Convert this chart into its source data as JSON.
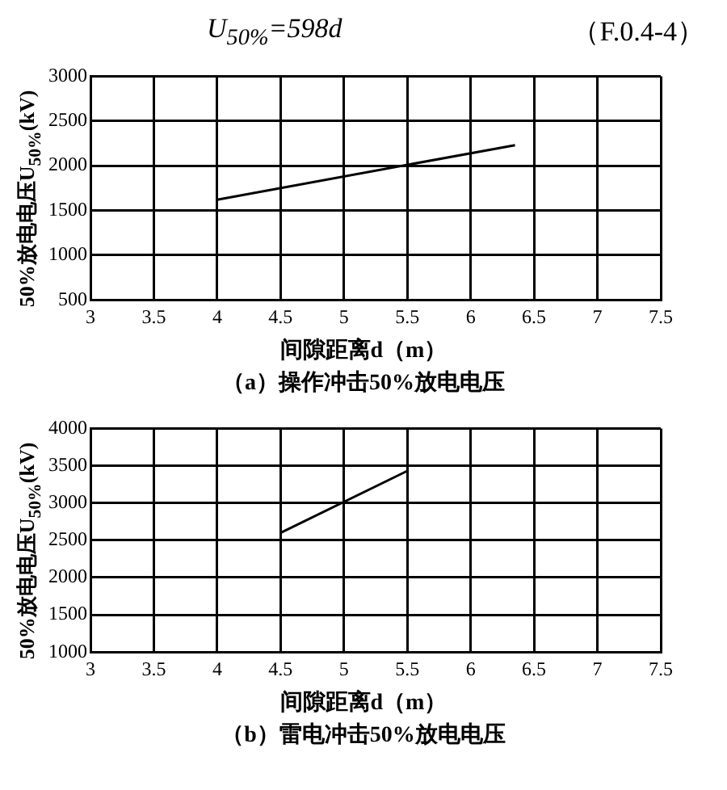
{
  "chart_data": [
    {
      "type": "line",
      "annotations": [
        "U$_{50%}$=598d",
        "（F.0.4-4）"
      ],
      "title": "（a）操作冲击50%放电电压",
      "xlabel": "间隙距离d（m）",
      "ylabel": "50%放电电压U$_{50%}$(kV)",
      "x": [
        4,
        6.35
      ],
      "series": [
        {
          "color": "#000000",
          "values": [
            1620,
            2230
          ]
        }
      ],
      "xlim": [
        3,
        7.5
      ],
      "xticks": [
        3,
        3.5,
        4,
        4.5,
        5,
        5.5,
        6,
        6.5,
        7,
        7.5
      ],
      "ylim": [
        500,
        3000
      ],
      "yticks": [
        500,
        1000,
        1500,
        2000,
        2500,
        3000
      ],
      "grid": true,
      "legend": false,
      "marker": "none",
      "line_style": "solid"
    },
    {
      "type": "line",
      "title": "（b）雷电冲击50%放电电压",
      "xlabel": "间隙距离d（m）",
      "ylabel": "50%放电电压U$_{50%}$(kV)",
      "x": [
        4.5,
        5.5
      ],
      "series": [
        {
          "color": "#000000",
          "values": [
            2600,
            3430
          ]
        }
      ],
      "xlim": [
        3,
        7.5
      ],
      "xticks": [
        3,
        3.5,
        4,
        4.5,
        5,
        5.5,
        6,
        6.5,
        7,
        7.5
      ],
      "ylim": [
        1000,
        4000
      ],
      "yticks": [
        1000,
        1500,
        2000,
        2500,
        3000,
        3500,
        4000
      ],
      "grid": true,
      "legend": false,
      "marker": "none",
      "line_style": "solid"
    }
  ]
}
